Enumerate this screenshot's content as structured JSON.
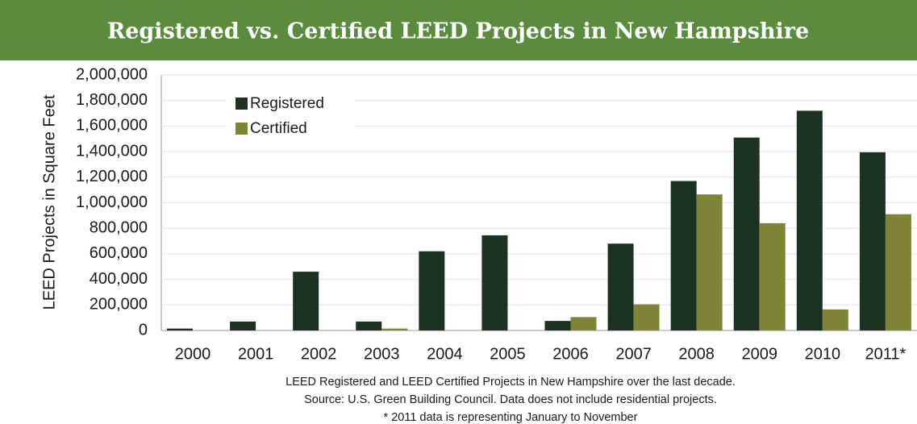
{
  "chart_data": {
    "type": "bar",
    "title": "Registered vs. Certified LEED Projects in New Hampshire",
    "y_label": "LEED Projects in Square Feet",
    "categories": [
      "2000",
      "2001",
      "2002",
      "2003",
      "2004",
      "2005",
      "2006",
      "2007",
      "2008",
      "2009",
      "2010",
      "2011*"
    ],
    "series": [
      {
        "name": "Registered",
        "color": "#1b3320",
        "values": [
          15000,
          70000,
          460000,
          70000,
          620000,
          745000,
          75000,
          680000,
          1170000,
          1510000,
          1720000,
          1395000
        ]
      },
      {
        "name": "Certified",
        "color": "#808436",
        "values": [
          0,
          0,
          0,
          15000,
          0,
          0,
          105000,
          205000,
          1065000,
          840000,
          165000,
          910000
        ]
      }
    ],
    "ylim": [
      0,
      2000000
    ],
    "yticks": [
      0,
      {
        "value": 200000,
        "label": "200,000"
      },
      {
        "value": 400000,
        "label": "400,000"
      },
      {
        "value": 600000,
        "label": "600,000"
      },
      {
        "value": 800000,
        "label": "800,000"
      },
      {
        "value": 1000000,
        "label": "1,000,000"
      },
      {
        "value": 1200000,
        "label": "1,200,000"
      },
      {
        "value": 1400000,
        "label": "1,400,000"
      },
      {
        "value": 1600000,
        "label": "1,600,000"
      },
      {
        "value": 1800000,
        "label": "1,800,000"
      },
      {
        "value": 2000000,
        "label": "2,000,000"
      }
    ],
    "grid": true,
    "legend": "upper left",
    "notes": [
      "LEED Registered and LEED Certified Projects in New Hampshire over the last decade.",
      "Source: U.S. Green Building Council. Data does not include residential projects.",
      "* 2011 data is representing January to November"
    ]
  }
}
